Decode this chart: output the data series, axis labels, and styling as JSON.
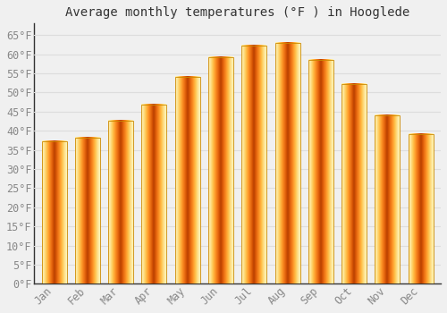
{
  "title": "Average monthly temperatures (°F ) in Hooglede",
  "months": [
    "Jan",
    "Feb",
    "Mar",
    "Apr",
    "May",
    "Jun",
    "Jul",
    "Aug",
    "Sep",
    "Oct",
    "Nov",
    "Dec"
  ],
  "values": [
    37.2,
    38.1,
    42.6,
    46.8,
    54.0,
    59.2,
    62.2,
    63.0,
    58.6,
    52.2,
    44.1,
    39.2
  ],
  "bar_color": "#FFA500",
  "bar_edge_color": "#CC8800",
  "background_color": "#F0F0F0",
  "grid_color": "#DDDDDD",
  "text_color": "#888888",
  "title_color": "#333333",
  "spine_color": "#333333",
  "ylim": [
    0,
    68
  ],
  "yticks": [
    0,
    5,
    10,
    15,
    20,
    25,
    30,
    35,
    40,
    45,
    50,
    55,
    60,
    65
  ],
  "title_fontsize": 10,
  "tick_fontsize": 8.5,
  "bar_width": 0.75
}
